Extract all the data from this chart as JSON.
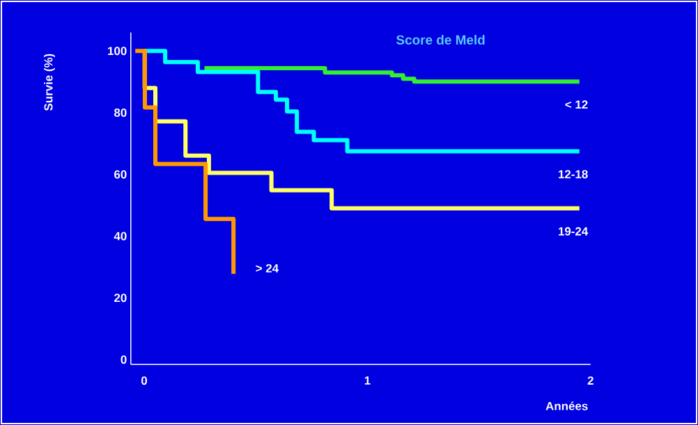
{
  "chart_data": {
    "type": "step",
    "title": "Score de Meld",
    "xlabel": "Années",
    "ylabel": "Survie (%)",
    "xlim": [
      -0.06,
      2
    ],
    "ylim": [
      -1.5,
      106
    ],
    "xticks": [
      0,
      1,
      2
    ],
    "yticks": [
      0,
      20,
      40,
      60,
      80,
      100
    ],
    "grid": false,
    "series": [
      {
        "name": "< 12",
        "color": "#33ee33",
        "x": [
          0.27,
          0.81,
          1.11,
          1.16,
          1.21,
          1.95
        ],
        "values": [
          94.4,
          93.0,
          92.1,
          91.0,
          90.1,
          90.1
        ]
      },
      {
        "name": "12-18",
        "color": "#00ffff",
        "x": [
          0,
          0.094,
          0.24,
          0.51,
          0.59,
          0.64,
          0.684,
          0.76,
          0.91,
          1.95
        ],
        "values": [
          100,
          96.4,
          93.2,
          86.7,
          84.2,
          80.4,
          73.8,
          71.1,
          67.5,
          67.5
        ]
      },
      {
        "name": "19-24",
        "color": "#ffff66",
        "x": [
          0,
          0.002,
          0.05,
          0.185,
          0.29,
          0.57,
          0.84,
          1.95
        ],
        "values": [
          100,
          88.0,
          77.2,
          66.1,
          60.5,
          54.9,
          49.0,
          49.0
        ]
      },
      {
        "name": "> 24",
        "color": "#ff9900",
        "x": [
          -0.04,
          0.003,
          0.05,
          0.275,
          0.4
        ],
        "values": [
          100,
          81.7,
          63.4,
          45.6,
          27.8
        ]
      }
    ]
  }
}
